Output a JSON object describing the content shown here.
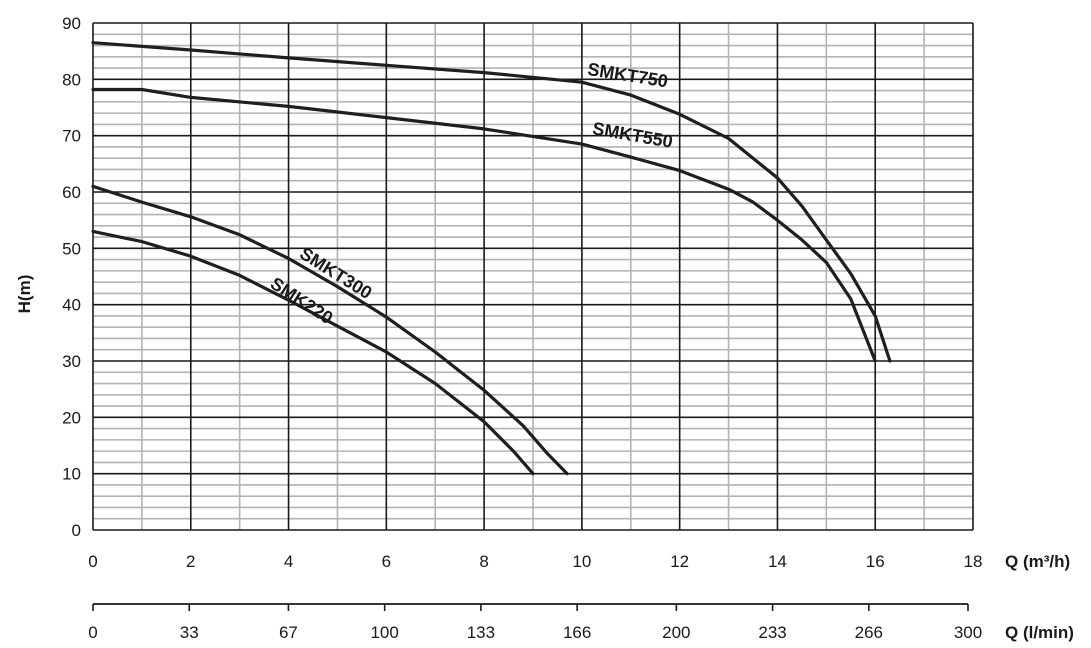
{
  "chart_data": {
    "type": "line",
    "title": "",
    "ylabel": "H(m)",
    "xlabel": "Q (m³/h)",
    "xlabel_secondary": "Q (l/min)",
    "xlim": [
      0,
      18
    ],
    "ylim": [
      0,
      90
    ],
    "x_ticks": [
      0,
      2,
      4,
      6,
      8,
      10,
      12,
      14,
      16,
      18
    ],
    "y_ticks": [
      0,
      10,
      20,
      30,
      40,
      50,
      60,
      70,
      80,
      90
    ],
    "secondary_x_ticks": [
      {
        "value": 0,
        "label": "0"
      },
      {
        "value": 33,
        "label": "33"
      },
      {
        "value": 67,
        "label": "67"
      },
      {
        "value": 100,
        "label": "100"
      },
      {
        "value": 133,
        "label": "133"
      },
      {
        "value": 166,
        "label": "166"
      },
      {
        "value": 200,
        "label": "200"
      },
      {
        "value": 233,
        "label": "233"
      },
      {
        "value": 266,
        "label": "266"
      },
      {
        "value": 300,
        "label": "300"
      }
    ],
    "secondary_xlim": [
      0,
      300
    ],
    "grid": {
      "major": true,
      "minor": true,
      "minor_x_step": 1,
      "minor_y_step": 2
    },
    "colors": {
      "lines": "#1f1f1f",
      "grid_major": "#1a1a1a",
      "grid_minor": "#b3b3b3"
    },
    "series": [
      {
        "name": "SMKT750",
        "label_at": [
          10.1,
          80.8
        ],
        "label_angle": 9,
        "x": [
          0,
          2,
          4,
          6,
          8,
          10,
          11,
          12,
          13,
          14,
          14.5,
          15,
          15.5,
          16,
          16.3
        ],
        "y": [
          86.5,
          85.2,
          83.8,
          82.5,
          81.2,
          79.5,
          77.2,
          73.8,
          69.5,
          62.5,
          57.5,
          51.5,
          45.5,
          38,
          30
        ]
      },
      {
        "name": "SMKT550",
        "label_at": [
          10.2,
          70.3
        ],
        "label_angle": 10,
        "x": [
          0,
          1,
          2,
          4,
          6,
          8,
          10,
          11,
          12,
          13,
          13.5,
          14,
          14.5,
          15,
          15.5,
          16
        ],
        "y": [
          78.2,
          78.2,
          76.8,
          75.2,
          73.2,
          71.2,
          68.5,
          66.2,
          63.8,
          60.5,
          58.2,
          55,
          51.5,
          47.5,
          41,
          30
        ]
      },
      {
        "name": "SMKT300",
        "label_at": [
          4.2,
          48.5
        ],
        "label_angle": 32,
        "x": [
          0,
          1,
          2,
          3,
          4,
          5,
          6,
          7,
          8,
          8.8,
          9.3,
          9.7
        ],
        "y": [
          61,
          58.2,
          55.6,
          52.4,
          48.2,
          43.2,
          37.8,
          31.6,
          24.8,
          18.5,
          13.5,
          10
        ]
      },
      {
        "name": "SMK220",
        "label_at": [
          3.6,
          43.2
        ],
        "label_angle": 33,
        "x": [
          0,
          1,
          2,
          3,
          4,
          5,
          6,
          7,
          8,
          8.6,
          9
        ],
        "y": [
          53,
          51.2,
          48.6,
          45.2,
          40.8,
          36.2,
          31.6,
          26,
          19.2,
          14,
          10
        ]
      }
    ]
  }
}
